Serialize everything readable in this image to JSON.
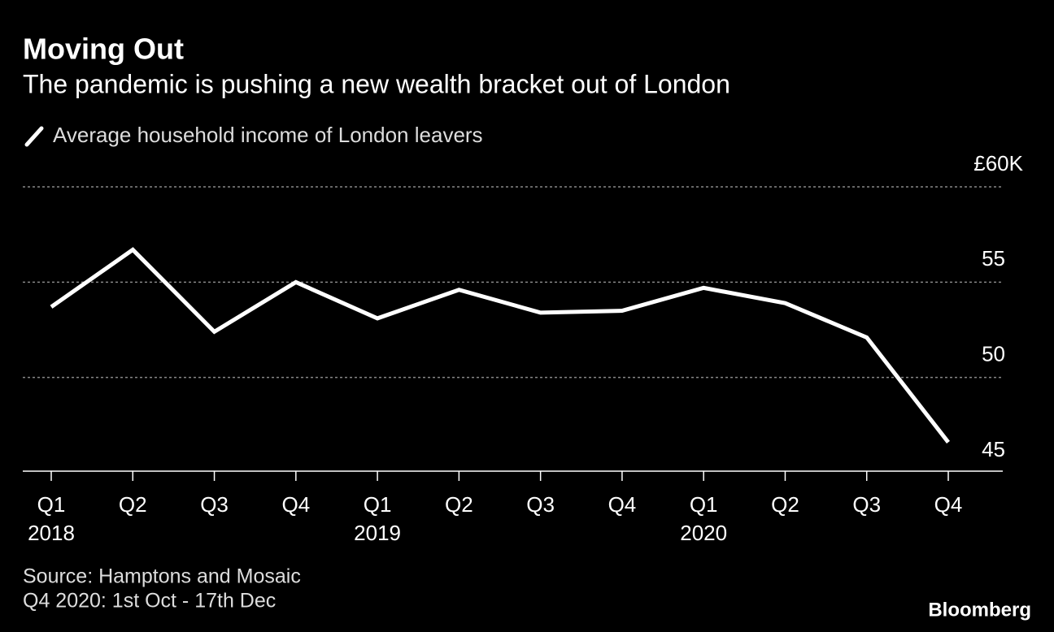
{
  "chart_data": {
    "type": "line",
    "title": "Moving Out",
    "subtitle": "The pandemic is pushing a new wealth bracket out of London",
    "categories": [
      "Q1",
      "Q2",
      "Q3",
      "Q4",
      "Q1",
      "Q2",
      "Q3",
      "Q4",
      "Q1",
      "Q2",
      "Q3",
      "Q4"
    ],
    "years": [
      "2018",
      null,
      null,
      null,
      "2019",
      null,
      null,
      null,
      "2020",
      null,
      null,
      null
    ],
    "series": [
      {
        "name": "Average household income of London leavers",
        "color": "#ffffff",
        "values": [
          53.7,
          56.7,
          52.4,
          55.0,
          53.1,
          54.6,
          53.4,
          53.5,
          54.7,
          53.9,
          52.1,
          46.6
        ]
      }
    ],
    "ylim": [
      45,
      60
    ],
    "yticks": [
      45,
      50,
      55,
      {
        "value": 60,
        "label": "£60K"
      }
    ],
    "grid": true,
    "source": "Source: Hamptons and Mosaic",
    "note": "Q4 2020: 1st Oct - 17th Dec",
    "brand": "Bloomberg"
  }
}
